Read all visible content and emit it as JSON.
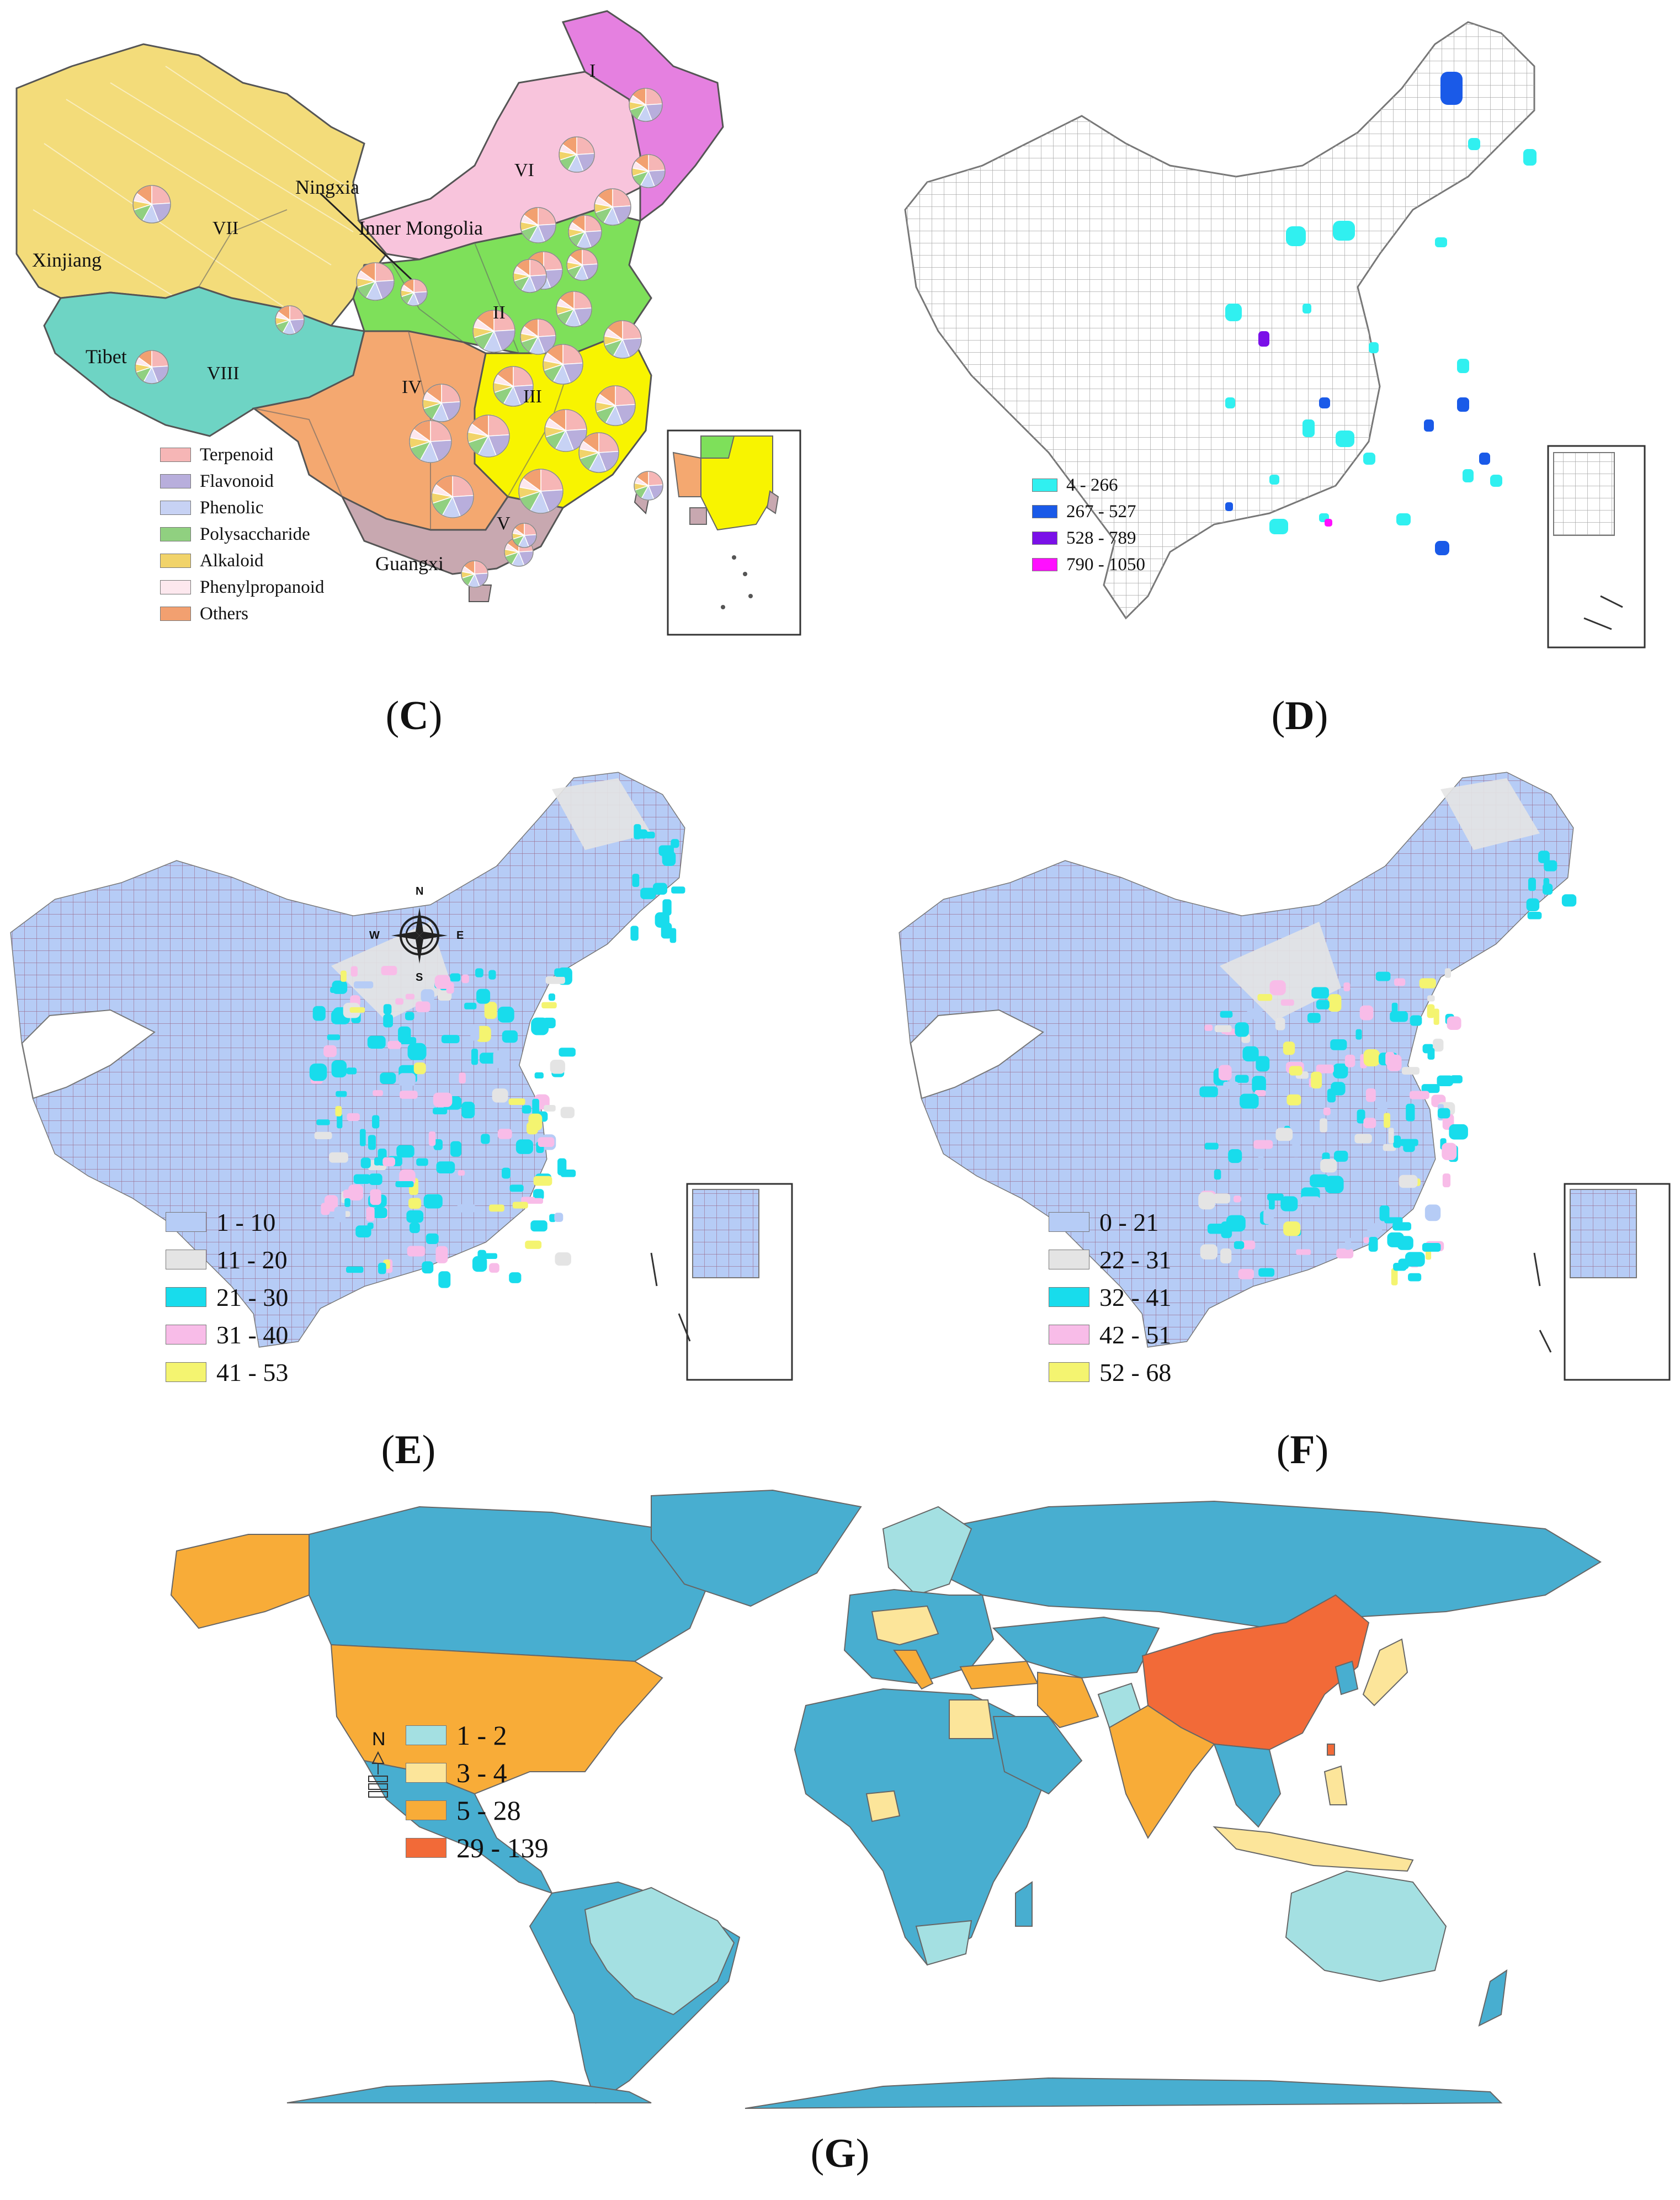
{
  "panels": {
    "C": {
      "caption": "C",
      "legend": [
        {
          "label": "Terpenoid",
          "color": "#f6b6b6"
        },
        {
          "label": "Flavonoid",
          "color": "#b8aedc"
        },
        {
          "label": "Phenolic",
          "color": "#c7d2f4"
        },
        {
          "label": "Polysaccharide",
          "color": "#90d080"
        },
        {
          "label": "Alkaloid",
          "color": "#f1d36a"
        },
        {
          "label": "Phenylpropanoid",
          "color": "#fde8ee"
        },
        {
          "label": "Others",
          "color": "#f2a070"
        }
      ],
      "region_labels": [
        "Ningxia",
        "Inner Mongolia",
        "Xinjiang",
        "Tibet",
        "Guangxi"
      ],
      "roman_labels": [
        "I",
        "II",
        "III",
        "IV",
        "V",
        "VI",
        "VII",
        "VIII"
      ],
      "region_colors": {
        "I": "#e580e0",
        "VI": "#f8c4dc",
        "VII": "#f3dc7a",
        "VIII": "#6ed4c4",
        "II": "#7ee05a",
        "III": "#f8f400",
        "IV": "#f4a870",
        "V": "#c8a8b0"
      }
    },
    "D": {
      "caption": "D",
      "legend": [
        {
          "label": "4 - 266",
          "color": "#30f0f0"
        },
        {
          "label": "267 - 527",
          "color": "#1a5ae8"
        },
        {
          "label": "528 - 789",
          "color": "#7a10e8"
        },
        {
          "label": "790 - 1050",
          "color": "#ff10ff"
        }
      ]
    },
    "E": {
      "caption": "E",
      "legend": [
        {
          "label": "1 - 10",
          "color": "#b6ccf6"
        },
        {
          "label": "11 - 20",
          "color": "#e4e4e4"
        },
        {
          "label": "21 - 30",
          "color": "#18dcec"
        },
        {
          "label": "31 - 40",
          "color": "#f8bce8"
        },
        {
          "label": "41 - 53",
          "color": "#f4f470"
        }
      ],
      "compass": {
        "n": "N",
        "s": "S",
        "e": "E",
        "w": "W"
      }
    },
    "F": {
      "caption": "F",
      "legend": [
        {
          "label": "0 - 21",
          "color": "#b6ccf6"
        },
        {
          "label": "22 - 31",
          "color": "#e4e4e4"
        },
        {
          "label": "32 - 41",
          "color": "#18dcec"
        },
        {
          "label": "42 - 51",
          "color": "#f8bce8"
        },
        {
          "label": "52 - 68",
          "color": "#f4f470"
        }
      ]
    },
    "G": {
      "caption": "G",
      "legend": [
        {
          "label": "1 - 2",
          "color": "#a4e0e2"
        },
        {
          "label": "3 - 4",
          "color": "#fce59a"
        },
        {
          "label": "5 - 28",
          "color": "#f8ac38"
        },
        {
          "label": "29 - 139",
          "color": "#f26a38"
        }
      ],
      "base_color": "#48aed0",
      "north": "N"
    }
  }
}
